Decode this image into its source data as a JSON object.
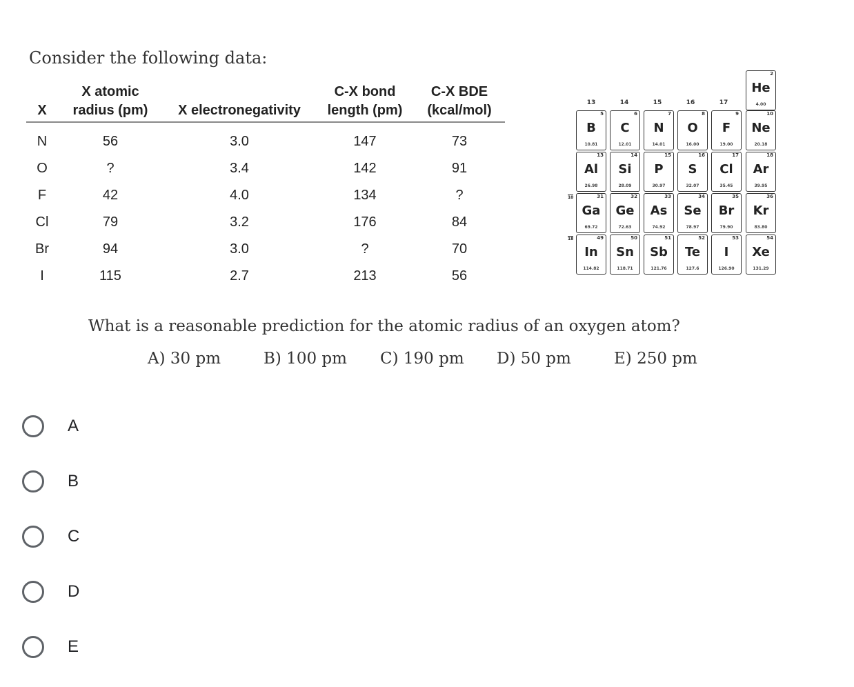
{
  "intro": "Consider the following data:",
  "table": {
    "headers": [
      [
        "",
        "X"
      ],
      [
        "X atomic",
        "radius (pm)"
      ],
      [
        "",
        "X electronegativity"
      ],
      [
        "C-X bond",
        "length (pm)"
      ],
      [
        "C-X BDE",
        "(kcal/mol)"
      ]
    ],
    "rows": [
      [
        "N",
        "56",
        "3.0",
        "147",
        "73"
      ],
      [
        "O",
        "?",
        "3.4",
        "142",
        "91"
      ],
      [
        "F",
        "42",
        "4.0",
        "134",
        "?"
      ],
      [
        "Cl",
        "79",
        "3.2",
        "176",
        "84"
      ],
      [
        "Br",
        "94",
        "3.0",
        "?",
        "70"
      ],
      [
        "I",
        "115",
        "2.7",
        "213",
        "56"
      ]
    ]
  },
  "periodic_table": {
    "groups": [
      "13",
      "14",
      "15",
      "16",
      "17"
    ],
    "row_markers": [
      "10",
      "18"
    ],
    "elements": [
      {
        "z": "2",
        "sym": "He",
        "mass": "4.00"
      },
      {
        "z": "5",
        "sym": "B",
        "mass": "10.81"
      },
      {
        "z": "6",
        "sym": "C",
        "mass": "12.01"
      },
      {
        "z": "7",
        "sym": "N",
        "mass": "14.01"
      },
      {
        "z": "8",
        "sym": "O",
        "mass": "16.00"
      },
      {
        "z": "9",
        "sym": "F",
        "mass": "19.00"
      },
      {
        "z": "10",
        "sym": "Ne",
        "mass": "20.18"
      },
      {
        "z": "13",
        "sym": "Al",
        "mass": "26.98"
      },
      {
        "z": "14",
        "sym": "Si",
        "mass": "28.09"
      },
      {
        "z": "15",
        "sym": "P",
        "mass": "30.97"
      },
      {
        "z": "16",
        "sym": "S",
        "mass": "32.07"
      },
      {
        "z": "17",
        "sym": "Cl",
        "mass": "35.45"
      },
      {
        "z": "18",
        "sym": "Ar",
        "mass": "39.95"
      },
      {
        "z": "31",
        "sym": "Ga",
        "mass": "69.72"
      },
      {
        "z": "32",
        "sym": "Ge",
        "mass": "72.63"
      },
      {
        "z": "33",
        "sym": "As",
        "mass": "74.92"
      },
      {
        "z": "34",
        "sym": "Se",
        "mass": "78.97"
      },
      {
        "z": "35",
        "sym": "Br",
        "mass": "79.90"
      },
      {
        "z": "36",
        "sym": "Kr",
        "mass": "83.80"
      },
      {
        "z": "49",
        "sym": "In",
        "mass": "114.82"
      },
      {
        "z": "50",
        "sym": "Sn",
        "mass": "118.71"
      },
      {
        "z": "51",
        "sym": "Sb",
        "mass": "121.76"
      },
      {
        "z": "52",
        "sym": "Te",
        "mass": "127.6"
      },
      {
        "z": "53",
        "sym": "I",
        "mass": "126.90"
      },
      {
        "z": "54",
        "sym": "Xe",
        "mass": "131.29"
      }
    ]
  },
  "question": "What is a reasonable prediction for the atomic radius of an oxygen atom?",
  "answers": [
    "A) 30 pm",
    "B) 100 pm",
    "C) 190 pm",
    "D) 50 pm",
    "E) 250 pm"
  ],
  "options": [
    "A",
    "B",
    "C",
    "D",
    "E"
  ]
}
